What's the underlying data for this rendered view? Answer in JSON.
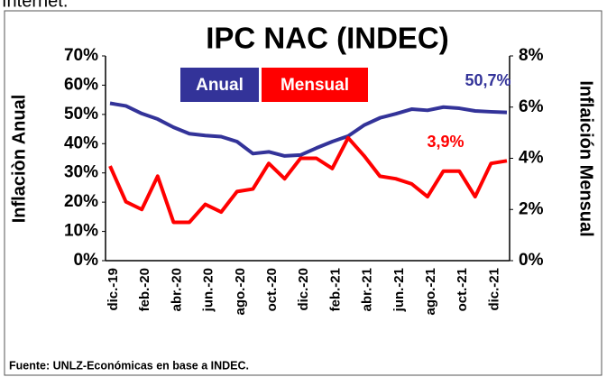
{
  "caption": "Internet.",
  "chart_data": {
    "type": "line",
    "title": "IPC NAC (INDEC)",
    "y_label": "Inflaciòn Anual",
    "y2_label": "Inflaición Mensual",
    "source": "Fuente: UNLZ-Económicas en base a INDEC.",
    "categories": [
      "dic.-19",
      null,
      "feb.-20",
      null,
      "abr.-20",
      null,
      "jun.-20",
      null,
      "ago.-20",
      null,
      "oct.-20",
      null,
      "dic.-20",
      null,
      "feb.-21",
      null,
      "abr.-21",
      null,
      "jun.-21",
      null,
      "ago.-21",
      null,
      "oct.-21",
      null,
      "dic.-21",
      null
    ],
    "series": [
      {
        "name": "Anual",
        "color": "#333399",
        "axis": "y",
        "values": [
          53.8,
          52.9,
          50.3,
          48.4,
          45.6,
          43.4,
          42.8,
          42.4,
          40.7,
          36.6,
          37.2,
          35.8,
          36.1,
          38.5,
          40.7,
          42.6,
          46.3,
          48.8,
          50.2,
          51.8,
          51.4,
          52.5,
          52.1,
          51.2,
          50.9,
          50.7
        ]
      },
      {
        "name": "Mensual",
        "color": "#ff0000",
        "axis": "y2",
        "values": [
          3.7,
          2.3,
          2.0,
          3.3,
          1.5,
          1.5,
          2.2,
          1.9,
          2.7,
          2.8,
          3.8,
          3.2,
          4.0,
          4.0,
          3.6,
          4.8,
          4.1,
          3.3,
          3.2,
          3.0,
          2.5,
          3.5,
          3.5,
          2.5,
          3.8,
          3.9
        ]
      }
    ],
    "annotations": [
      "50,7%",
      "3,9%"
    ],
    "ylim": [
      0,
      70
    ],
    "yticks": [
      {
        "value": 0,
        "label": "0%"
      },
      {
        "value": 10,
        "label": "10%"
      },
      {
        "value": 20,
        "label": "20%"
      },
      {
        "value": 30,
        "label": "30%"
      },
      {
        "value": 40,
        "label": "40%"
      },
      {
        "value": 50,
        "label": "50%"
      },
      {
        "value": 60,
        "label": "60%"
      },
      {
        "value": 70,
        "label": "70%"
      }
    ],
    "y2lim": [
      0,
      8
    ],
    "y2ticks": [
      {
        "value": 0,
        "label": "0%"
      },
      {
        "value": 2,
        "label": "2%"
      },
      {
        "value": 4,
        "label": "4%"
      },
      {
        "value": 6,
        "label": "6%"
      },
      {
        "value": 8,
        "label": "8%"
      }
    ],
    "grid": false
  }
}
